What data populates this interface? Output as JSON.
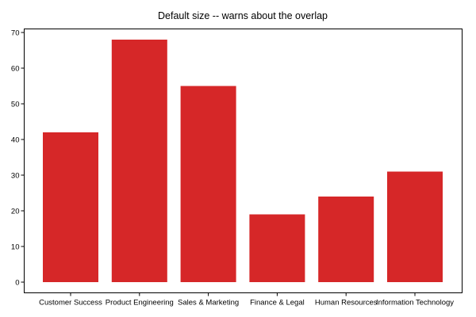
{
  "chart_data": {
    "type": "bar",
    "title": "Default size -- warns about the overlap",
    "categories": [
      "Customer Success",
      "Product Engineering",
      "Sales & Marketing",
      "Finance & Legal",
      "Human Resources",
      "Information Technology"
    ],
    "values": [
      42,
      68,
      55,
      19,
      24,
      31
    ],
    "xlabel": "",
    "ylabel": "",
    "ylim": [
      -3,
      71
    ],
    "yticks": [
      0,
      10,
      20,
      30,
      40,
      50,
      60,
      70
    ],
    "grid": false,
    "bar_color": "#d62728"
  }
}
